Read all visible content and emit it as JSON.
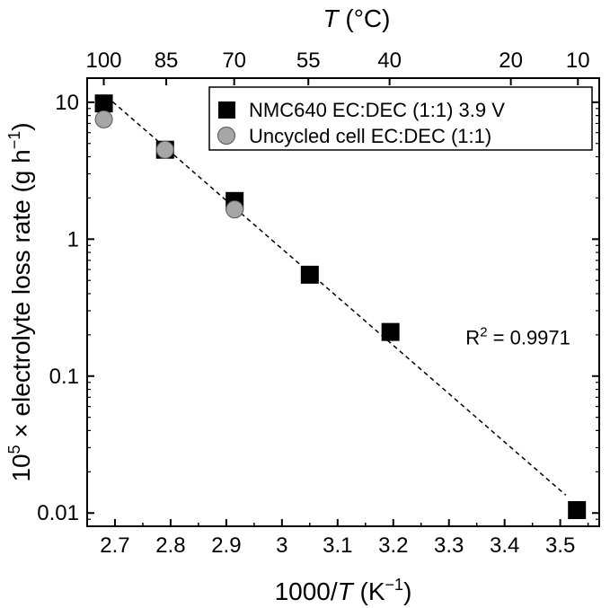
{
  "chart_data": {
    "type": "scatter",
    "title": "",
    "xlabel": "1000/T (K⁻¹)",
    "xlabel_parts": {
      "pre": "1000/",
      "var": "T",
      "post": " (K",
      "sup": "−1",
      "close": ")"
    },
    "ylabel_parts": {
      "pre": "10",
      "sup": "5",
      "post": " × electrolyte loss rate (g h",
      "sup2": "−1",
      "close": ")"
    },
    "top_xlabel_parts": {
      "var": "T",
      "post": " (°C)"
    },
    "xlim": [
      2.65,
      3.57
    ],
    "ylim": [
      0.008,
      15
    ],
    "yscale": "log",
    "x_ticks": [
      2.7,
      2.8,
      2.9,
      3.0,
      3.1,
      3.2,
      3.3,
      3.4,
      3.5
    ],
    "x_tick_labels": [
      "2.7",
      "2.8",
      "2.9",
      "3",
      "3.1",
      "3.2",
      "3.3",
      "3.4",
      "3.5"
    ],
    "y_ticks": [
      0.01,
      0.1,
      1,
      10
    ],
    "y_tick_labels": [
      "0.01",
      "0.1",
      "1",
      "10"
    ],
    "top_ticks_celsius": [
      100,
      85,
      70,
      55,
      40,
      20,
      10
    ],
    "top_tick_labels": [
      "100",
      "85",
      "70",
      "55",
      "40",
      "20",
      "10"
    ],
    "series": [
      {
        "name": "NMC640 EC:DEC (1:1) 3.9 V",
        "marker": "square",
        "color": "#000000",
        "x": [
          2.68,
          2.79,
          2.915,
          3.05,
          3.195,
          3.53
        ],
        "y": [
          9.8,
          4.5,
          1.9,
          0.55,
          0.21,
          0.0105
        ]
      },
      {
        "name": "Uncycled cell EC:DEC (1:1)",
        "marker": "circle",
        "color": "#a6a6a6",
        "x": [
          2.68,
          2.79,
          2.915
        ],
        "y": [
          7.5,
          4.5,
          1.65
        ]
      }
    ],
    "fit_line": {
      "x": [
        2.685,
        3.51
      ],
      "y": [
        11.0,
        0.0135
      ],
      "style": "dashed"
    },
    "annotation": {
      "pre": "R",
      "sup": "2",
      "post": " = 0.9971",
      "x": 3.33,
      "y": 0.17
    },
    "legend_position": "top-right"
  }
}
